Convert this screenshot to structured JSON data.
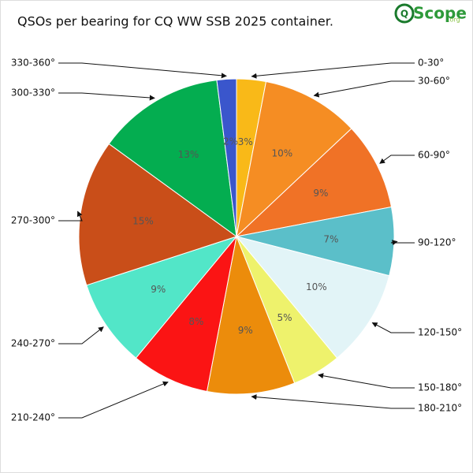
{
  "chart_data": {
    "type": "pie",
    "title": "QSOs per bearing for CQ WW SSB 2025 container.",
    "logo": {
      "mark": "Q",
      "name": "Scope",
      "suffix": ".org"
    },
    "categories": [
      "0-30°",
      "30-60°",
      "60-90°",
      "90-120°",
      "120-150°",
      "150-180°",
      "180-210°",
      "210-240°",
      "240-270°",
      "270-300°",
      "300-330°",
      "330-360°"
    ],
    "values": [
      3,
      10,
      9,
      7,
      10,
      5,
      9,
      8,
      9,
      15,
      13,
      2
    ],
    "value_labels": [
      "3%",
      "10%",
      "9%",
      "7%",
      "10%",
      "5%",
      "9%",
      "8%",
      "9%",
      "15%",
      "13%",
      "2%"
    ],
    "colors": [
      "#f9b918",
      "#f58d23",
      "#f07226",
      "#5bbfc9",
      "#e2f4f7",
      "#eef26c",
      "#ec8c0b",
      "#fb1414",
      "#52e6c8",
      "#c94e19",
      "#04ad50",
      "#3a56cc"
    ]
  }
}
